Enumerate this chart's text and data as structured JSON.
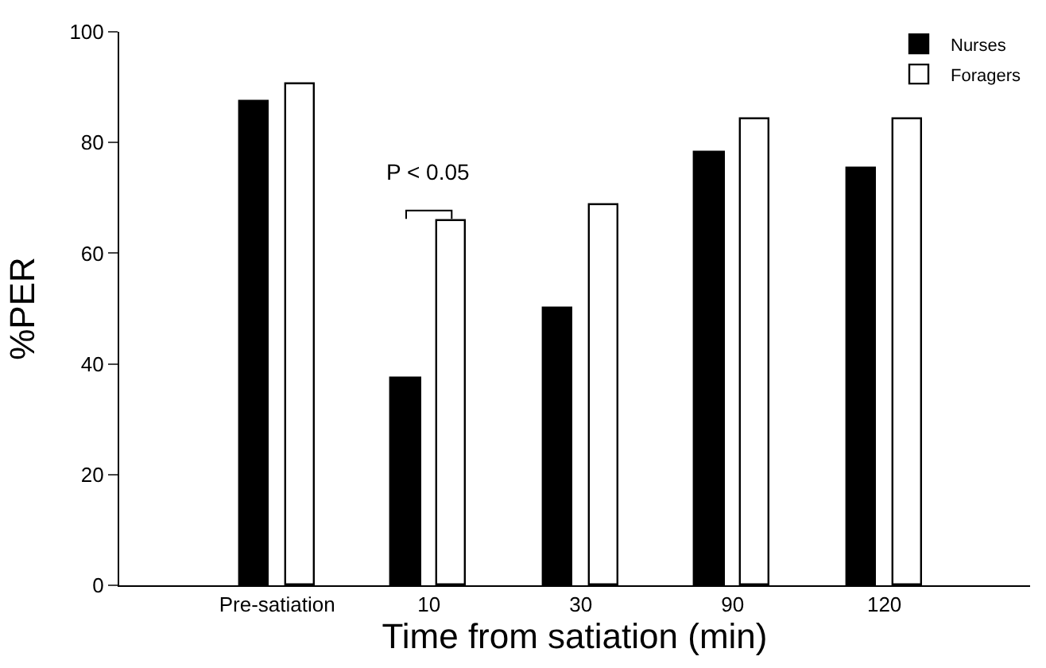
{
  "chart_data": {
    "type": "bar",
    "xlabel": "Time from satiation (min)",
    "ylabel": "%PER",
    "categories": [
      "Pre-satiation",
      "10",
      "30",
      "90",
      "120"
    ],
    "series": [
      {
        "name": "Nurses",
        "color": "#000000",
        "values": [
          87.4,
          37.3,
          49.9,
          78.3,
          75.2
        ]
      },
      {
        "name": "Foragers",
        "color": "#ffffff",
        "values": [
          90.6,
          65.7,
          68.8,
          84.3,
          84.3
        ]
      }
    ],
    "ylim": [
      0,
      100
    ],
    "yticks": [
      0,
      20,
      40,
      60,
      80,
      100
    ],
    "annotations": [
      "P < 0.05"
    ],
    "legend": "top right"
  }
}
